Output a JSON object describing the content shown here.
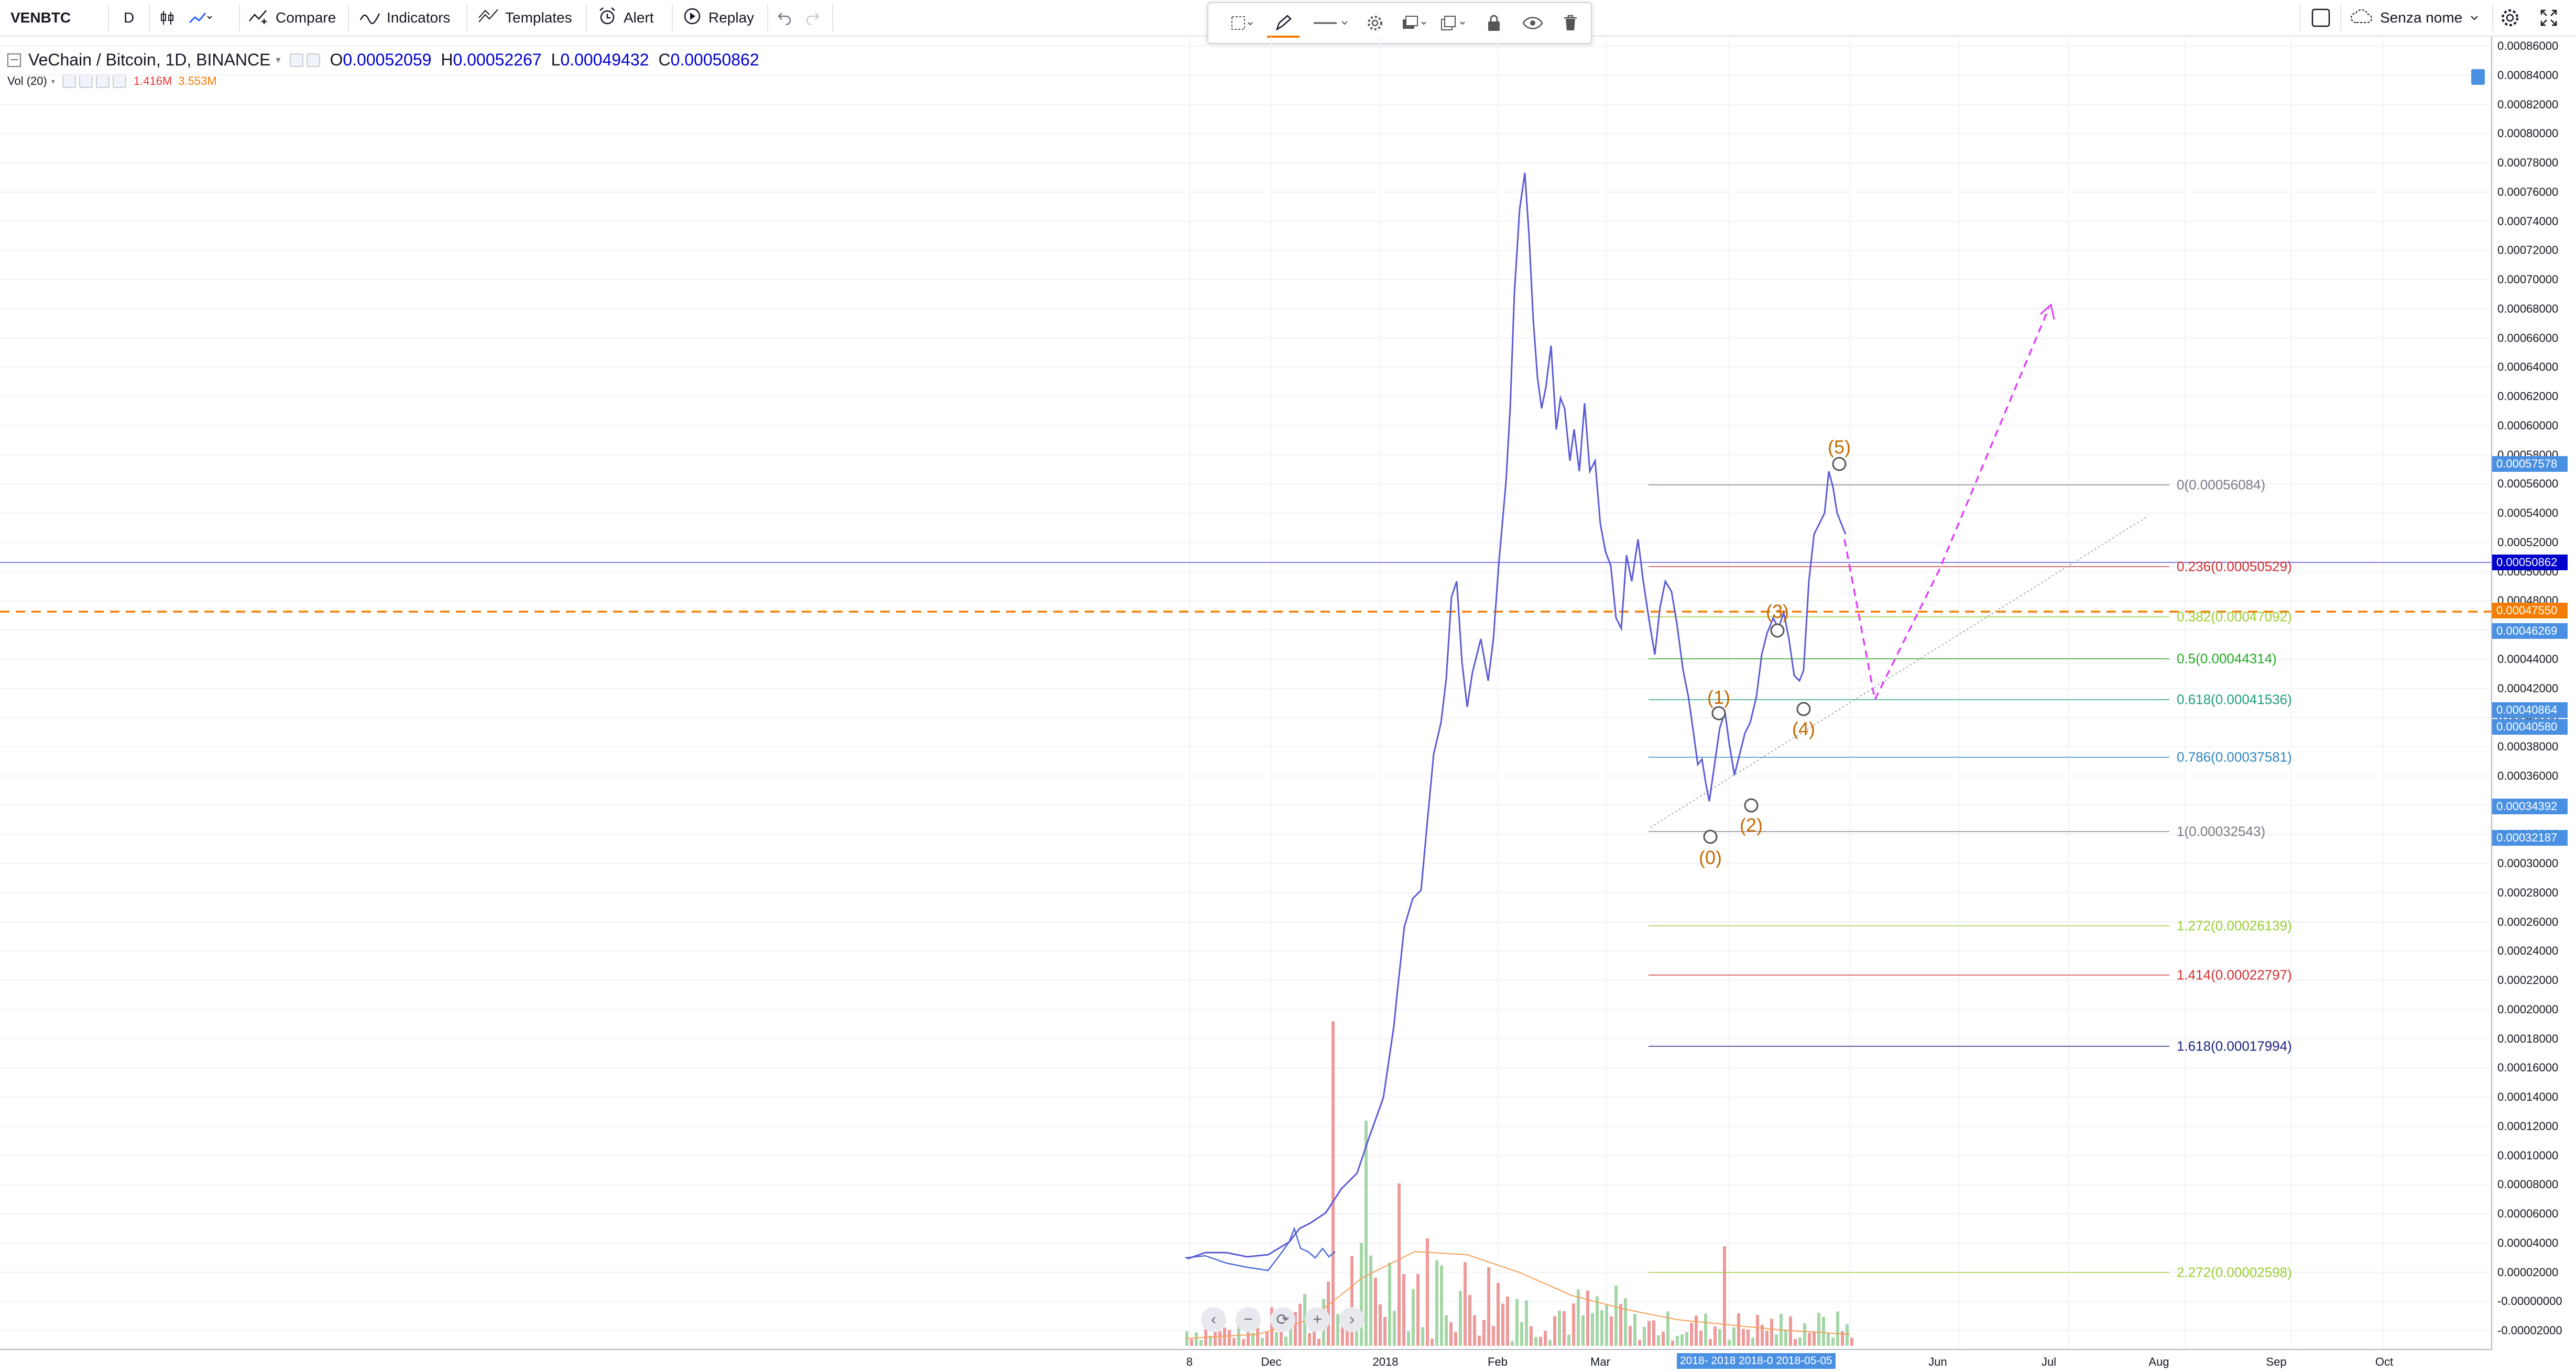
{
  "toolbar": {
    "symbol": "VENBTC",
    "interval": "D",
    "compare": "Compare",
    "indicators": "Indicators",
    "templates": "Templates",
    "alert": "Alert",
    "replay": "Replay",
    "layout_name": "Senza nome"
  },
  "legend": {
    "title": "VeChain / Bitcoin, 1D, BINANCE",
    "open_label": "O",
    "open": "0.00052059",
    "high_label": "H",
    "high": "0.00052267",
    "low_label": "L",
    "low": "0.00049432",
    "close_label": "C",
    "close": "0.00050862",
    "vol_title": "Vol (20)",
    "vol_value": "1.416M",
    "vol_ma": "3.553M"
  },
  "price_axis_ticks": [
    "0.00086000",
    "0.00084000",
    "0.00082000",
    "0.00080000",
    "0.00078000",
    "0.00076000",
    "0.00074000",
    "0.00072000",
    "0.00070000",
    "0.00068000",
    "0.00066000",
    "0.00064000",
    "0.00062000",
    "0.00060000",
    "0.00058000",
    "0.00056000",
    "0.00054000",
    "0.00052000",
    "0.00050000",
    "0.00048000",
    "0.00046000",
    "0.00044000",
    "0.00042000",
    "0.00040000",
    "0.00038000",
    "0.00036000",
    "0.00034000",
    "0.00032000",
    "0.00030000",
    "0.00028000",
    "0.00026000",
    "0.00024000",
    "0.00022000",
    "0.00020000",
    "0.00018000",
    "0.00016000",
    "0.00014000",
    "0.00012000",
    "0.00010000",
    "0.00008000",
    "0.00006000",
    "0.00004000",
    "0.00002000",
    "-0.00000000",
    "-0.00002000"
  ],
  "price_badges": [
    {
      "text": "0.00057578",
      "color": "#4a90e2"
    },
    {
      "text": "0.00050862",
      "color": "#0000cc"
    },
    {
      "text": "0.00047550",
      "color": "#f57c00"
    },
    {
      "text": "0.00046269",
      "color": "#4a90e2"
    },
    {
      "text": "0.00040864",
      "color": "#4a90e2"
    },
    {
      "text": "0.00040580",
      "color": "#4a90e2"
    },
    {
      "text": "0.00034392",
      "color": "#4a90e2"
    },
    {
      "text": "0.00032187",
      "color": "#4a90e2"
    }
  ],
  "fib_levels": [
    {
      "label": "0(0.00056084)",
      "color": "#787b86"
    },
    {
      "label": "0.236(0.00050529)",
      "color": "#d32f2f"
    },
    {
      "label": "0.382(0.00047092)",
      "color": "#9acd32"
    },
    {
      "label": "0.5(0.00044314)",
      "color": "#22aa22"
    },
    {
      "label": "0.618(0.00041536)",
      "color": "#1e9e7e"
    },
    {
      "label": "0.786(0.00037581)",
      "color": "#2e86c1"
    },
    {
      "label": "1(0.00032543)",
      "color": "#787b86"
    },
    {
      "label": "1.272(0.00026139)",
      "color": "#9acd32"
    },
    {
      "label": "1.414(0.00022797)",
      "color": "#d32f2f"
    },
    {
      "label": "1.618(0.00017994)",
      "color": "#1a237e"
    },
    {
      "label": "2.272(0.00002598)",
      "color": "#9acd32"
    }
  ],
  "wave_labels": [
    "(0)",
    "(1)",
    "(2)",
    "(3)",
    "(4)",
    "(5)"
  ],
  "time_axis": {
    "ticks": [
      "8",
      "Dec",
      "2018",
      "Feb",
      "Mar",
      "Jun",
      "Jul",
      "Aug",
      "Sep",
      "Oct"
    ],
    "selection": "2018-  2018  2018-0  2018-05-05"
  },
  "chart_data": {
    "type": "line",
    "symbol": "VeChain / Bitcoin, 1D, BINANCE",
    "ylim": [
      -2e-05,
      0.00086
    ],
    "price_series": [
      [
        "Dec",
        6.5e-05
      ],
      [
        "Dec",
        7e-05
      ],
      [
        "Dec",
        9e-05
      ],
      [
        "Dec",
        0.00011
      ],
      [
        "2018",
        0.00018
      ],
      [
        "2018",
        0.00026
      ],
      [
        "2018",
        0.00045
      ],
      [
        "2018",
        0.00048
      ],
      [
        "Jan",
        0.00062
      ],
      [
        "Jan",
        0.00076
      ],
      [
        "Jan",
        0.00066
      ],
      [
        "Jan",
        0.0006
      ],
      [
        "Feb",
        0.00056
      ],
      [
        "Feb",
        0.0005
      ],
      [
        "Feb",
        0.0006
      ],
      [
        "Feb",
        0.00061
      ],
      [
        "Feb",
        0.00048
      ],
      [
        "Mar",
        0.00039
      ],
      [
        "Mar",
        0.00047
      ],
      [
        "Mar",
        0.00042
      ],
      [
        "Mar",
        0.00038
      ],
      [
        "Mar",
        0.00032
      ],
      [
        "Mar",
        0.0004
      ],
      [
        "Apr",
        0.00035
      ],
      [
        "Apr",
        0.00046
      ],
      [
        "Apr",
        0.00041
      ],
      [
        "Apr",
        0.00057578
      ],
      [
        "May",
        0.00050862
      ]
    ],
    "projection": [
      [
        0.00054,
        0.00042
      ],
      [
        0.00042,
        0.00068
      ]
    ],
    "current_price": 0.00050862,
    "alert_price": 0.0004755,
    "grid": true
  }
}
